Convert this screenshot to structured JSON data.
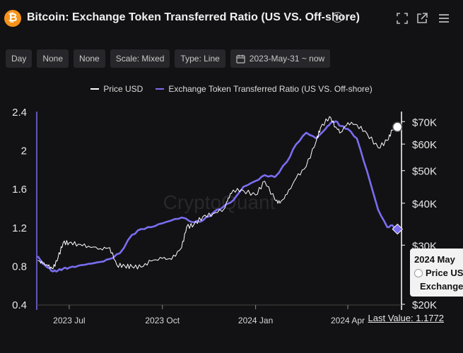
{
  "header": {
    "logo_glyph": "₿",
    "title": "Bitcoin: Exchange Token Transferred Ratio (US VS. Off-shore)",
    "info_glyph": "i",
    "icons": [
      "info-icon",
      "expand-icon",
      "open-external-icon",
      "menu-icon"
    ]
  },
  "toolbar": {
    "buttons": [
      "Day",
      "None",
      "None",
      "Scale: Mixed",
      "Type: Line"
    ],
    "date_range": "2023-May-31 ~ now",
    "date_icon": "calendar-icon"
  },
  "legend": [
    {
      "label": "Price USD",
      "color": "#ffffff"
    },
    {
      "label": "Exchange Token Transferred Ratio (US VS. Off-shore)",
      "color": "#7a6df0"
    }
  ],
  "chart_data": {
    "type": "line",
    "watermark": "CryptoQuant",
    "x_tick_labels": [
      "2023 Jul",
      "2023 Oct",
      "2024 Jan",
      "2024 Apr"
    ],
    "y_left": {
      "ticks": [
        "2.4",
        "2",
        "1.6",
        "1.2",
        "0.8",
        "0.4"
      ],
      "range": [
        0.4,
        2.4
      ]
    },
    "y_right": {
      "ticks": [
        "$70K",
        "$60K",
        "$50K",
        "$40K",
        "$30K",
        "$20K"
      ],
      "range": [
        20000,
        75000
      ],
      "scale": "log"
    },
    "series": [
      {
        "name": "Exchange Token Transferred Ratio (US VS. Off-shore)",
        "axis": "left",
        "color": "#7a6df0",
        "dates": [
          "2023-05-31",
          "2023-06-05",
          "2023-06-10",
          "2023-06-15",
          "2023-06-20",
          "2023-06-25",
          "2023-07-01",
          "2023-07-10",
          "2023-07-20",
          "2023-08-01",
          "2023-08-10",
          "2023-08-20",
          "2023-09-01",
          "2023-09-10",
          "2023-09-20",
          "2023-10-01",
          "2023-10-10",
          "2023-10-20",
          "2023-11-01",
          "2023-11-10",
          "2023-11-20",
          "2023-12-01",
          "2023-12-10",
          "2023-12-20",
          "2024-01-01",
          "2024-01-10",
          "2024-01-20",
          "2024-02-01",
          "2024-02-10",
          "2024-02-20",
          "2024-03-01",
          "2024-03-10",
          "2024-03-15",
          "2024-03-20",
          "2024-03-25",
          "2024-04-01",
          "2024-04-10",
          "2024-04-20",
          "2024-05-01",
          "2024-05-10",
          "2024-05-15",
          "2024-05-20"
        ],
        "values": [
          0.9,
          0.82,
          0.78,
          0.74,
          0.75,
          0.77,
          0.78,
          0.8,
          0.82,
          0.84,
          0.87,
          0.93,
          1.12,
          1.18,
          1.2,
          1.24,
          1.27,
          1.3,
          1.25,
          1.27,
          1.35,
          1.42,
          1.48,
          1.62,
          1.68,
          1.74,
          1.72,
          1.88,
          2.06,
          2.18,
          2.12,
          2.22,
          2.28,
          2.3,
          2.25,
          2.22,
          2.12,
          1.78,
          1.38,
          1.2,
          1.22,
          1.18
        ]
      },
      {
        "name": "Price USD",
        "axis": "right",
        "color": "#ffffff",
        "dates": [
          "2023-05-31",
          "2023-06-05",
          "2023-06-10",
          "2023-06-15",
          "2023-06-20",
          "2023-06-25",
          "2023-07-01",
          "2023-07-10",
          "2023-07-20",
          "2023-08-01",
          "2023-08-10",
          "2023-08-17",
          "2023-08-25",
          "2023-09-01",
          "2023-09-10",
          "2023-09-20",
          "2023-10-01",
          "2023-10-10",
          "2023-10-20",
          "2023-10-25",
          "2023-11-01",
          "2023-11-10",
          "2023-11-20",
          "2023-12-01",
          "2023-12-05",
          "2023-12-10",
          "2023-12-20",
          "2024-01-01",
          "2024-01-10",
          "2024-01-20",
          "2024-01-25",
          "2024-02-01",
          "2024-02-10",
          "2024-02-20",
          "2024-03-01",
          "2024-03-05",
          "2024-03-14",
          "2024-03-20",
          "2024-03-25",
          "2024-04-01",
          "2024-04-10",
          "2024-04-20",
          "2024-05-01",
          "2024-05-10",
          "2024-05-15",
          "2024-05-20"
        ],
        "values": [
          27000,
          26500,
          26000,
          25500,
          27500,
          30500,
          30500,
          30200,
          29800,
          29300,
          29500,
          26200,
          26000,
          25900,
          25800,
          26900,
          27400,
          27200,
          29500,
          34000,
          34500,
          36500,
          37200,
          38500,
          41500,
          43800,
          43600,
          42300,
          46500,
          41000,
          40000,
          42500,
          47500,
          51500,
          61500,
          67000,
          72500,
          67500,
          65000,
          69500,
          68500,
          64500,
          58500,
          61500,
          66000,
          67500
        ]
      }
    ],
    "last_value_label": "Last Value: 1.1772"
  },
  "tooltip": {
    "date": "2024 May",
    "rows": [
      "Price USD",
      "Exchange Token Transferred Ratio (US VS. Off-shore)"
    ]
  }
}
